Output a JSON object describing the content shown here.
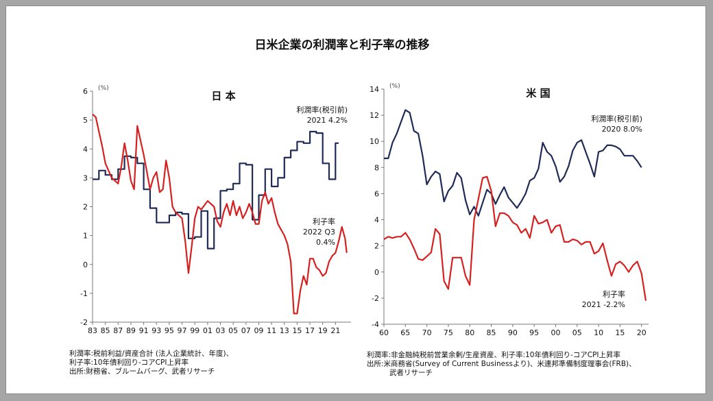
{
  "title": "日米企業の利潤率と利子率の推移",
  "chart_data": [
    {
      "type": "line",
      "title": "日 本",
      "unit": "(%)",
      "ylim": [
        -2,
        6
      ],
      "yticks": [
        -2,
        -1,
        0,
        1,
        2,
        3,
        4,
        5,
        6
      ],
      "xlim": [
        1983,
        2023
      ],
      "xtick_labels": [
        "83",
        "85",
        "87",
        "89",
        "91",
        "93",
        "95",
        "97",
        "99",
        "01",
        "03",
        "05",
        "07",
        "09",
        "11",
        "13",
        "15",
        "17",
        "19",
        "21"
      ],
      "series": [
        {
          "name": "利潤率(税引前)",
          "color": "#1f2a56",
          "step": true,
          "annotation": [
            "利潤率(税引前)",
            "2021  4.2%"
          ],
          "points": [
            [
              1983,
              2.95
            ],
            [
              1984,
              3.25
            ],
            [
              1985,
              3.1
            ],
            [
              1986,
              2.95
            ],
            [
              1987,
              3.3
            ],
            [
              1988,
              3.75
            ],
            [
              1989,
              3.7
            ],
            [
              1990,
              3.5
            ],
            [
              1991,
              2.6
            ],
            [
              1992,
              1.95
            ],
            [
              1993,
              1.45
            ],
            [
              1994,
              1.45
            ],
            [
              1995,
              1.7
            ],
            [
              1996,
              1.8
            ],
            [
              1997,
              1.75
            ],
            [
              1998,
              0.9
            ],
            [
              1999,
              0.95
            ],
            [
              2000,
              1.85
            ],
            [
              2001,
              0.55
            ],
            [
              2002,
              1.6
            ],
            [
              2003,
              2.55
            ],
            [
              2004,
              2.6
            ],
            [
              2005,
              2.8
            ],
            [
              2006,
              3.5
            ],
            [
              2007,
              3.45
            ],
            [
              2008,
              1.55
            ],
            [
              2009,
              2.4
            ],
            [
              2010,
              3.3
            ],
            [
              2011,
              2.7
            ],
            [
              2012,
              3.0
            ],
            [
              2013,
              3.7
            ],
            [
              2014,
              3.95
            ],
            [
              2015,
              4.25
            ],
            [
              2016,
              4.2
            ],
            [
              2017,
              4.6
            ],
            [
              2018,
              4.55
            ],
            [
              2019,
              3.5
            ],
            [
              2020,
              2.95
            ],
            [
              2021,
              4.2
            ]
          ]
        },
        {
          "name": "利子率",
          "color": "#d62020",
          "step": false,
          "annotation": [
            "利子率",
            "2022 Q3",
            "0.4%"
          ],
          "points": [
            [
              1983,
              5.2
            ],
            [
              1983.5,
              5.1
            ],
            [
              1984,
              4.6
            ],
            [
              1984.5,
              4.1
            ],
            [
              1985,
              3.5
            ],
            [
              1986,
              3.0
            ],
            [
              1987,
              2.8
            ],
            [
              1987.5,
              3.4
            ],
            [
              1988,
              4.2
            ],
            [
              1988.5,
              3.6
            ],
            [
              1989,
              2.9
            ],
            [
              1989.5,
              2.6
            ],
            [
              1990,
              4.8
            ],
            [
              1990.5,
              4.3
            ],
            [
              1991,
              3.8
            ],
            [
              1991.5,
              3.2
            ],
            [
              1992,
              2.6
            ],
            [
              1992.5,
              3.0
            ],
            [
              1993,
              3.2
            ],
            [
              1993.5,
              2.5
            ],
            [
              1994,
              2.6
            ],
            [
              1994.5,
              3.6
            ],
            [
              1995,
              3.0
            ],
            [
              1995.5,
              2.0
            ],
            [
              1996,
              1.8
            ],
            [
              1997,
              1.6
            ],
            [
              1997.5,
              0.8
            ],
            [
              1998,
              -0.3
            ],
            [
              1998.5,
              0.6
            ],
            [
              1999,
              1.6
            ],
            [
              1999.5,
              2.0
            ],
            [
              2000,
              1.9
            ],
            [
              2001,
              2.2
            ],
            [
              2002,
              2.0
            ],
            [
              2002.5,
              1.5
            ],
            [
              2003,
              1.3
            ],
            [
              2003.5,
              1.8
            ],
            [
              2004,
              2.1
            ],
            [
              2004.5,
              1.7
            ],
            [
              2005,
              2.2
            ],
            [
              2005.5,
              1.7
            ],
            [
              2006,
              2.0
            ],
            [
              2006.5,
              1.6
            ],
            [
              2007,
              1.8
            ],
            [
              2007.5,
              2.1
            ],
            [
              2008,
              1.8
            ],
            [
              2008.5,
              1.4
            ],
            [
              2009,
              1.4
            ],
            [
              2009.5,
              2.2
            ],
            [
              2010,
              2.5
            ],
            [
              2010.5,
              2.1
            ],
            [
              2011,
              2.3
            ],
            [
              2011.5,
              1.8
            ],
            [
              2012,
              1.4
            ],
            [
              2012.5,
              1.2
            ],
            [
              2013,
              1.0
            ],
            [
              2013.5,
              0.7
            ],
            [
              2014,
              0.1
            ],
            [
              2014.5,
              -1.7
            ],
            [
              2015,
              -1.7
            ],
            [
              2015.5,
              -0.9
            ],
            [
              2016,
              -0.4
            ],
            [
              2016.5,
              -0.7
            ],
            [
              2017,
              0.2
            ],
            [
              2017.5,
              0.2
            ],
            [
              2018,
              -0.1
            ],
            [
              2018.5,
              -0.2
            ],
            [
              2019,
              -0.4
            ],
            [
              2019.5,
              -0.3
            ],
            [
              2020,
              0.1
            ],
            [
              2020.5,
              0.3
            ],
            [
              2021,
              0.4
            ],
            [
              2021.5,
              0.8
            ],
            [
              2022,
              1.3
            ],
            [
              2022.5,
              0.9
            ],
            [
              2022.75,
              0.4
            ]
          ]
        }
      ],
      "notes": [
        "利潤率:税前利益/資産合計 (法人企業統計、年度)、",
        "利子率:10年債利回り-コアCPI上昇率",
        "出所:財務省、ブルームバーグ、武者リサーチ"
      ]
    },
    {
      "type": "line",
      "title": "米 国",
      "unit": "(%)",
      "ylim": [
        -4,
        14
      ],
      "yticks": [
        -4,
        -2,
        0,
        2,
        4,
        6,
        8,
        10,
        12,
        14
      ],
      "xlim": [
        1960,
        2021
      ],
      "xtick_labels": [
        "60",
        "65",
        "70",
        "75",
        "80",
        "85",
        "90",
        "95",
        "00",
        "05",
        "10",
        "15",
        "20"
      ],
      "xtick_values": [
        1960,
        1965,
        1970,
        1975,
        1980,
        1985,
        1990,
        1995,
        2000,
        2005,
        2010,
        2015,
        2020
      ],
      "series": [
        {
          "name": "利潤率(税引前)",
          "color": "#1f2a56",
          "step": false,
          "annotation": [
            "利潤率(税引前)",
            "2020  8.0%"
          ],
          "points": [
            [
              1960,
              8.7
            ],
            [
              1961,
              8.7
            ],
            [
              1962,
              9.9
            ],
            [
              1963,
              10.6
            ],
            [
              1964,
              11.5
            ],
            [
              1965,
              12.4
            ],
            [
              1966,
              12.2
            ],
            [
              1967,
              10.8
            ],
            [
              1968,
              10.6
            ],
            [
              1969,
              8.9
            ],
            [
              1970,
              6.7
            ],
            [
              1971,
              7.3
            ],
            [
              1972,
              7.7
            ],
            [
              1973,
              7.5
            ],
            [
              1974,
              5.4
            ],
            [
              1975,
              6.2
            ],
            [
              1976,
              6.6
            ],
            [
              1977,
              7.6
            ],
            [
              1978,
              7.2
            ],
            [
              1979,
              5.5
            ],
            [
              1980,
              4.4
            ],
            [
              1981,
              5.0
            ],
            [
              1982,
              4.3
            ],
            [
              1983,
              5.3
            ],
            [
              1984,
              6.3
            ],
            [
              1985,
              6.0
            ],
            [
              1986,
              5.2
            ],
            [
              1987,
              5.9
            ],
            [
              1988,
              6.5
            ],
            [
              1989,
              5.7
            ],
            [
              1990,
              5.3
            ],
            [
              1991,
              4.9
            ],
            [
              1992,
              5.4
            ],
            [
              1993,
              6.0
            ],
            [
              1994,
              7.0
            ],
            [
              1995,
              7.2
            ],
            [
              1996,
              7.9
            ],
            [
              1997,
              9.9
            ],
            [
              1998,
              9.2
            ],
            [
              1999,
              8.9
            ],
            [
              2000,
              8.1
            ],
            [
              2001,
              6.9
            ],
            [
              2002,
              7.3
            ],
            [
              2003,
              8.1
            ],
            [
              2004,
              9.3
            ],
            [
              2005,
              9.9
            ],
            [
              2006,
              10.1
            ],
            [
              2007,
              9.2
            ],
            [
              2008,
              8.3
            ],
            [
              2009,
              7.3
            ],
            [
              2010,
              9.2
            ],
            [
              2011,
              9.3
            ],
            [
              2012,
              9.7
            ],
            [
              2013,
              9.7
            ],
            [
              2014,
              9.6
            ],
            [
              2015,
              9.4
            ],
            [
              2016,
              8.9
            ],
            [
              2017,
              8.9
            ],
            [
              2018,
              8.9
            ],
            [
              2019,
              8.5
            ],
            [
              2020,
              8.0
            ]
          ]
        },
        {
          "name": "利子率",
          "color": "#d62020",
          "step": false,
          "annotation": [
            "利子率",
            "2021  -2.2%"
          ],
          "points": [
            [
              1960,
              2.5
            ],
            [
              1961,
              2.7
            ],
            [
              1962,
              2.6
            ],
            [
              1963,
              2.7
            ],
            [
              1964,
              2.7
            ],
            [
              1965,
              3.0
            ],
            [
              1966,
              2.5
            ],
            [
              1967,
              1.8
            ],
            [
              1968,
              1.0
            ],
            [
              1969,
              0.9
            ],
            [
              1970,
              1.2
            ],
            [
              1971,
              1.5
            ],
            [
              1972,
              3.3
            ],
            [
              1973,
              2.9
            ],
            [
              1974,
              -0.7
            ],
            [
              1975,
              -1.3
            ],
            [
              1976,
              1.1
            ],
            [
              1977,
              1.1
            ],
            [
              1978,
              1.1
            ],
            [
              1979,
              -0.3
            ],
            [
              1980,
              -1.0
            ],
            [
              1981,
              4.0
            ],
            [
              1982,
              5.6
            ],
            [
              1983,
              7.2
            ],
            [
              1984,
              7.3
            ],
            [
              1985,
              6.2
            ],
            [
              1986,
              3.5
            ],
            [
              1987,
              4.5
            ],
            [
              1988,
              4.5
            ],
            [
              1989,
              4.3
            ],
            [
              1990,
              3.8
            ],
            [
              1991,
              3.6
            ],
            [
              1992,
              3.0
            ],
            [
              1993,
              3.3
            ],
            [
              1994,
              2.6
            ],
            [
              1995,
              4.3
            ],
            [
              1996,
              3.7
            ],
            [
              1997,
              3.8
            ],
            [
              1998,
              4.0
            ],
            [
              1999,
              3.0
            ],
            [
              2000,
              3.5
            ],
            [
              2001,
              3.6
            ],
            [
              2002,
              2.3
            ],
            [
              2003,
              2.3
            ],
            [
              2004,
              2.5
            ],
            [
              2005,
              2.4
            ],
            [
              2006,
              2.1
            ],
            [
              2007,
              2.3
            ],
            [
              2008,
              2.3
            ],
            [
              2009,
              1.4
            ],
            [
              2010,
              1.6
            ],
            [
              2011,
              2.2
            ],
            [
              2012,
              0.9
            ],
            [
              2013,
              -0.3
            ],
            [
              2014,
              0.6
            ],
            [
              2015,
              0.8
            ],
            [
              2016,
              0.5
            ],
            [
              2017,
              0.0
            ],
            [
              2018,
              0.5
            ],
            [
              2019,
              0.8
            ],
            [
              2020,
              -0.1
            ],
            [
              2021,
              -2.2
            ]
          ]
        }
      ],
      "notes": [
        "利潤率:非金融純税前営業余剰/生産資産、利子率:10年債利回り-コアCPI上昇率",
        "出所:米商務省(Survey of Current Businessより)、米連邦準備制度理事会(FRB)、",
        "武者リサーチ"
      ]
    }
  ]
}
